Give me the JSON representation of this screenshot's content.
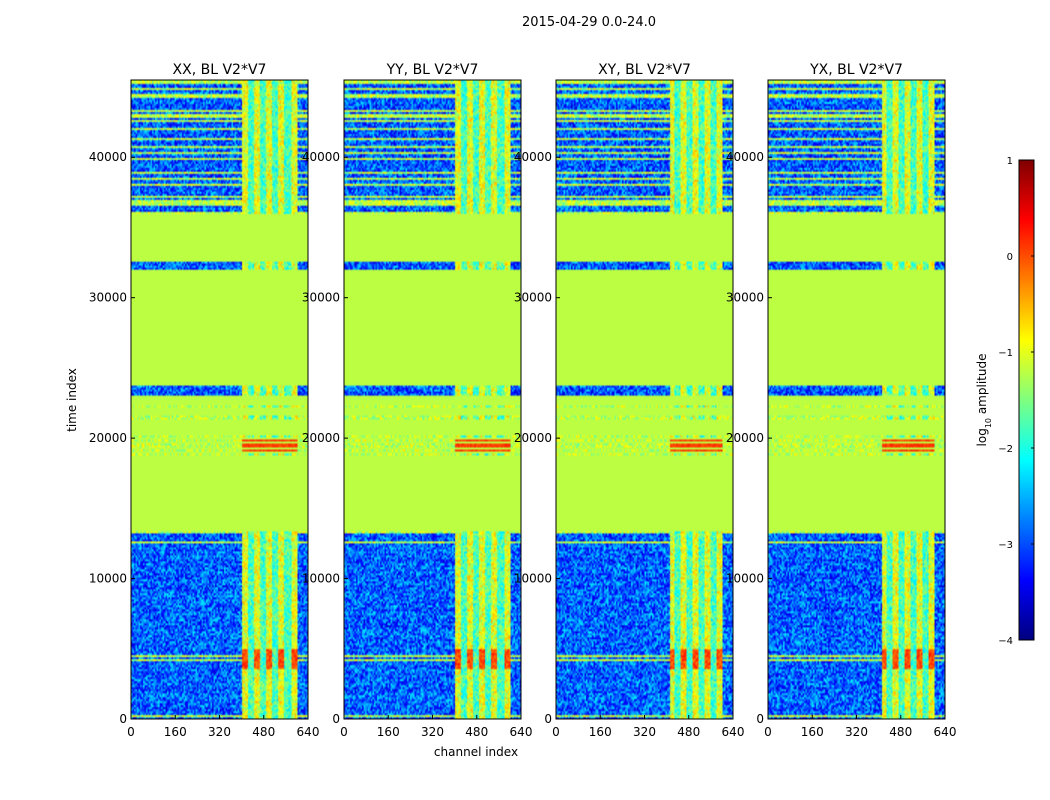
{
  "chart_data": {
    "type": "heatmap",
    "title": "2015-04-29 0.0-24.0",
    "xlabel": "channel index",
    "ylabel": "time index",
    "xlim": [
      0,
      640
    ],
    "ylim": [
      0,
      45500
    ],
    "xticks": [
      "0",
      "160",
      "320",
      "480",
      "640"
    ],
    "xtick_values": [
      0,
      160,
      320,
      480,
      640
    ],
    "yticks": [
      "0",
      "10000",
      "20000",
      "30000",
      "40000"
    ],
    "ytick_values": [
      0,
      10000,
      20000,
      30000,
      40000
    ],
    "colormap": "jet",
    "colorbar": {
      "label": "log10 amplitude",
      "label_main": "log",
      "label_sub": "10",
      "label_rest": " amplitude",
      "range": [
        -4,
        1
      ],
      "ticks": [
        "1",
        "0",
        "−1",
        "−2",
        "−3",
        "−4"
      ],
      "tick_values": [
        1,
        0,
        -1,
        -2,
        -3,
        -4
      ]
    },
    "panels": [
      {
        "title": "XX, BL V2*V7",
        "rfi_cols": [
          400,
          600
        ]
      },
      {
        "title": "YY, BL V2*V7",
        "rfi_cols": [
          400,
          600
        ]
      },
      {
        "title": "XY, BL V2*V7",
        "rfi_cols": [
          410,
          600
        ]
      },
      {
        "title": "YX, BL V2*V7",
        "rfi_cols": [
          410,
          600
        ]
      }
    ],
    "flagged_time_ranges": [
      [
        13400,
        23100
      ],
      [
        23800,
        32000
      ],
      [
        32500,
        36000
      ]
    ],
    "noise_level_log10": -3,
    "flag_level_log10": -1.2
  }
}
